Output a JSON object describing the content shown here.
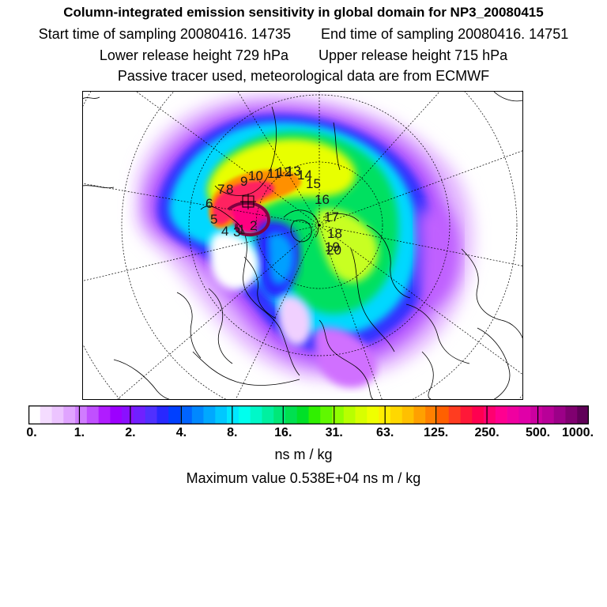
{
  "header": {
    "title": "Column-integrated emission sensitivity in global domain for NP3_20080415",
    "start_time": "Start time of sampling 20080416. 14735",
    "end_time": "End time of sampling 20080416. 14751",
    "lower_height": "Lower release height  729 hPa",
    "upper_height": "Upper release height  715 hPa",
    "tracer_note": "Passive tracer used, meteorological data are from ECMWF"
  },
  "colorbar": {
    "tick_labels": [
      "0.",
      "1.",
      "2.",
      "4.",
      "8.",
      "16.",
      "31.",
      "63.",
      "125.",
      "250.",
      "500.",
      "1000."
    ],
    "colors": [
      "#ffffff",
      "#f4dcff",
      "#ecc4ff",
      "#e0a4ff",
      "#d07cff",
      "#c050ff",
      "#b01cff",
      "#9c00ff",
      "#8a10ff",
      "#7020ff",
      "#5030ff",
      "#2828ff",
      "#0040ff",
      "#0064ff",
      "#0088ff",
      "#00a8ff",
      "#00c8ff",
      "#00e8ff",
      "#00ffee",
      "#00f8c8",
      "#00f0a0",
      "#00e878",
      "#00e050",
      "#00e028",
      "#30f000",
      "#60f800",
      "#90ff00",
      "#b8ff00",
      "#d8ff00",
      "#f0ff00",
      "#ffee00",
      "#ffd800",
      "#ffc000",
      "#ffa000",
      "#ff8000",
      "#ff6000",
      "#ff3c20",
      "#ff1838",
      "#ff0050",
      "#ff0070",
      "#ff0090",
      "#f000a0",
      "#e000a8",
      "#cc00a0",
      "#b80098",
      "#9c0088",
      "#800070",
      "#600058"
    ],
    "units": "ns m / kg",
    "max_value": "Maximum value  0.538E+04 ns m / kg"
  },
  "map": {
    "trajectory_labels": [
      "1",
      "2",
      "3",
      "4",
      "5",
      "6",
      "7",
      "8",
      "9",
      "10",
      "11",
      "12",
      "13",
      "14",
      "15",
      "16",
      "17",
      "18",
      "19",
      "20"
    ]
  }
}
